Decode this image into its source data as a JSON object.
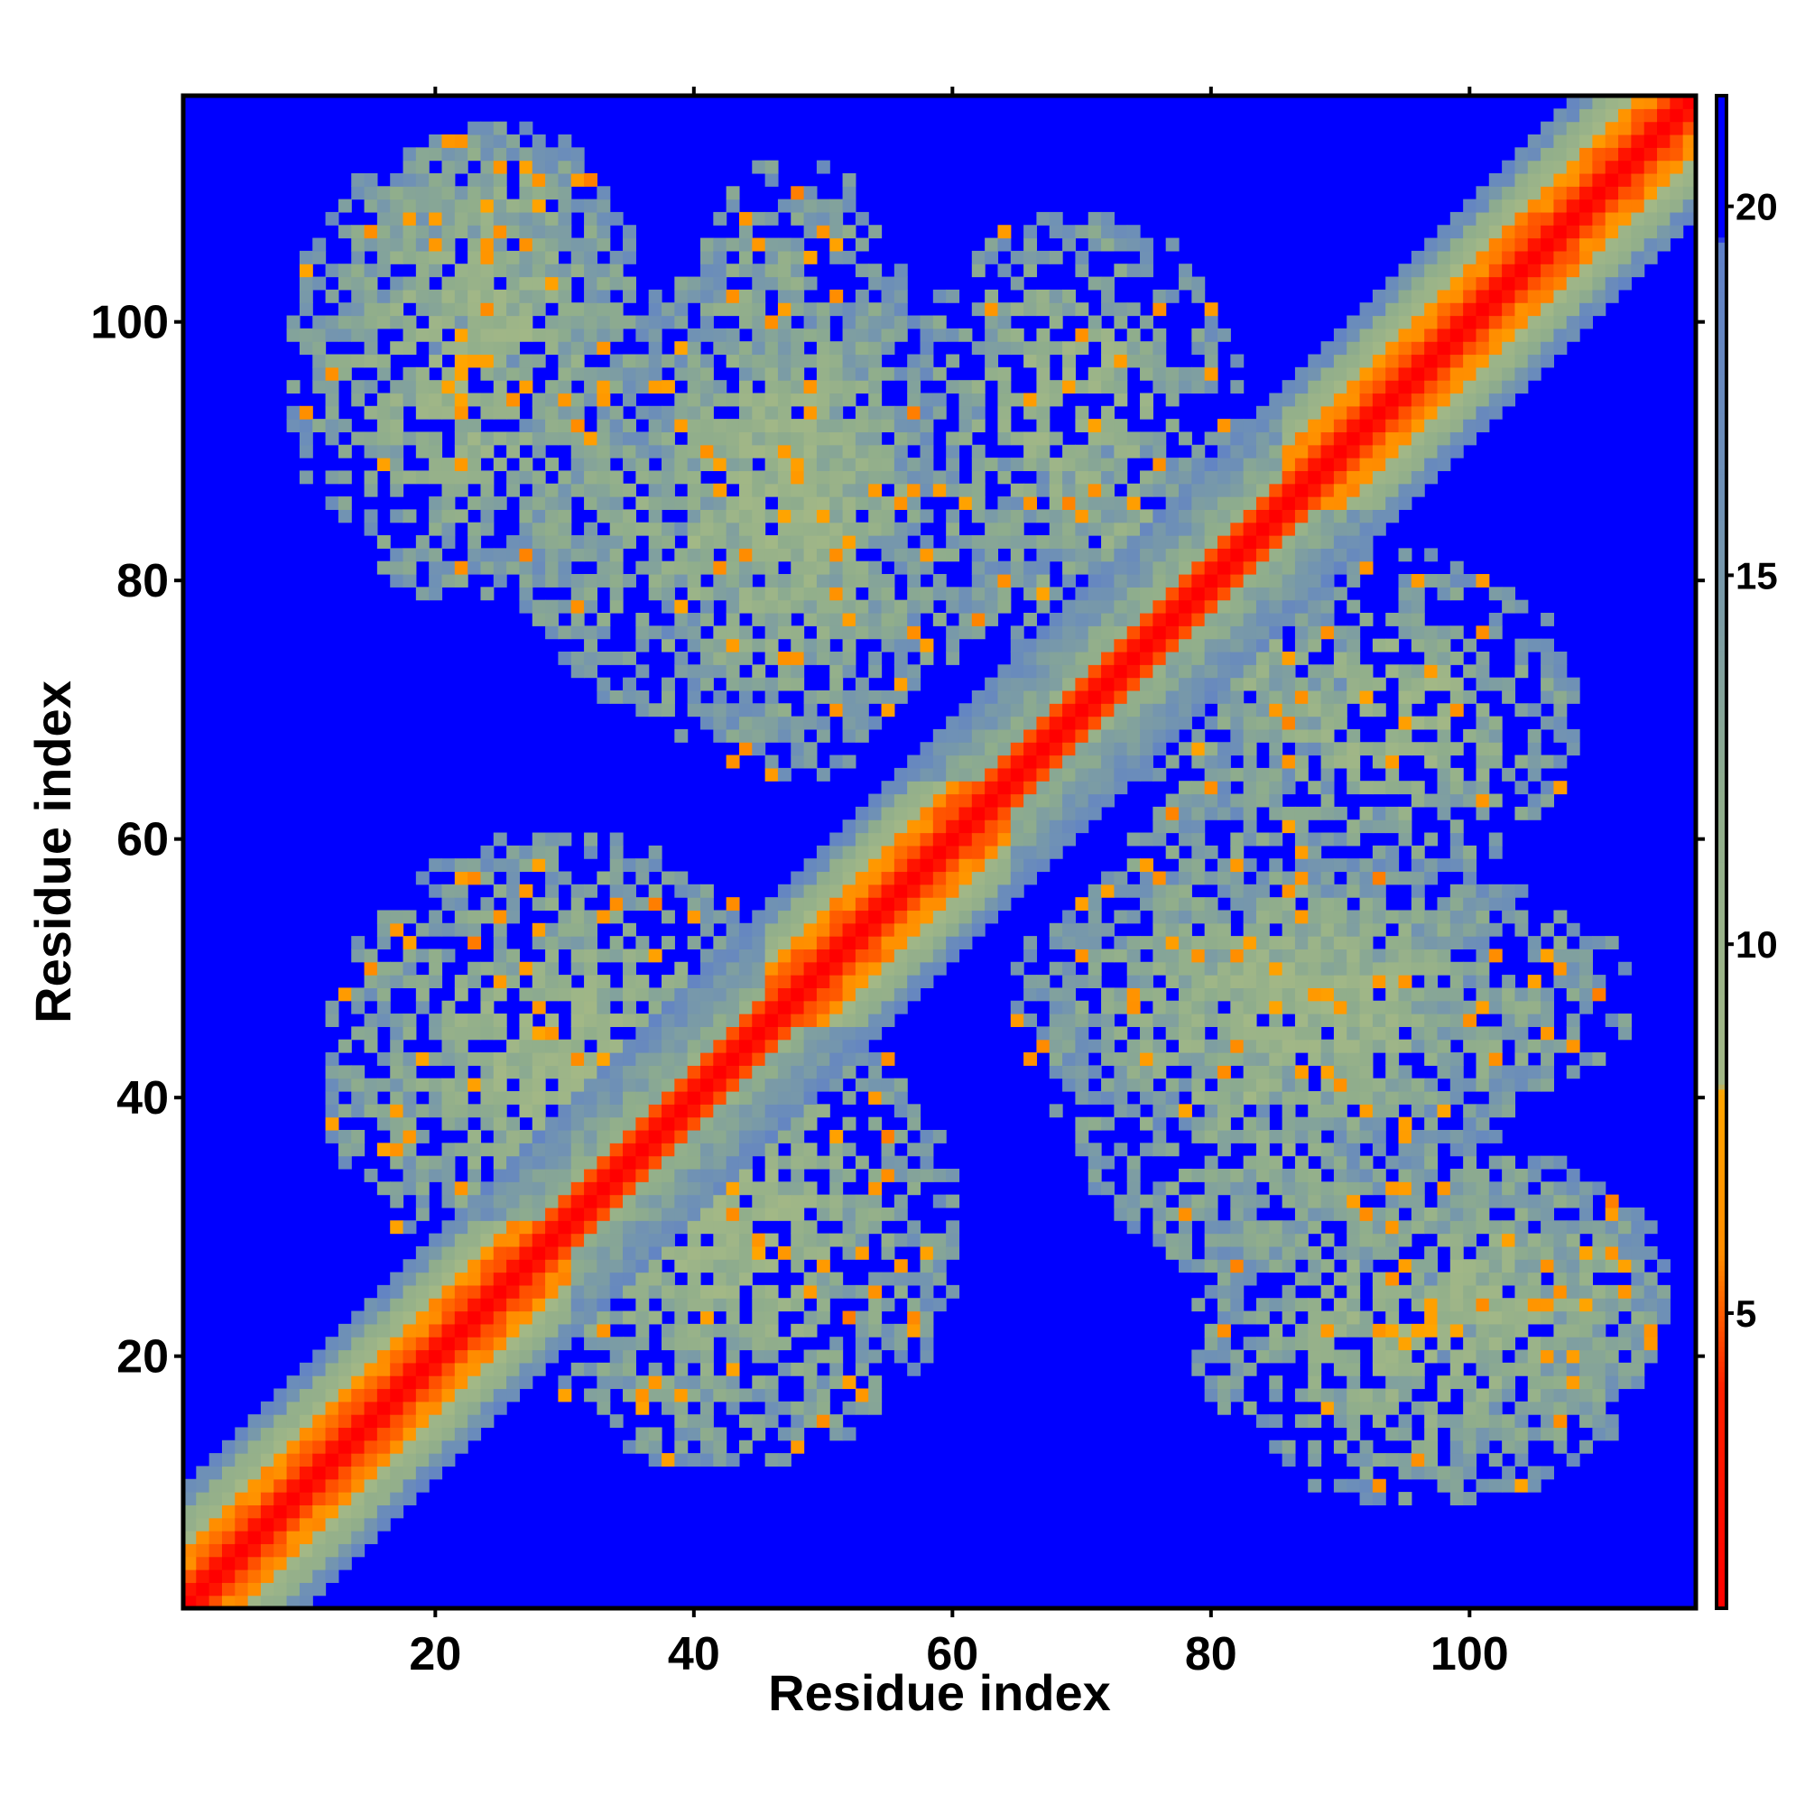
{
  "chart_data": {
    "type": "heatmap",
    "title": "",
    "xlabel": "Residue index",
    "ylabel": "Residue index",
    "x_range": [
      1,
      117
    ],
    "y_range": [
      1,
      117
    ],
    "x_ticks": [
      20,
      40,
      60,
      80,
      100
    ],
    "y_ticks": [
      20,
      40,
      60,
      80,
      100
    ],
    "grid": false,
    "legend": "none",
    "colorbar": {
      "placement": "right",
      "min": 1,
      "max": 21.5,
      "ticks": [
        5,
        10,
        15,
        20
      ],
      "stops": [
        {
          "value": 1.0,
          "color": "#ff0000"
        },
        {
          "value": 4.0,
          "color": "#ff2000"
        },
        {
          "value": 5.8,
          "color": "#ff8c00"
        },
        {
          "value": 8.0,
          "color": "#ffa500"
        },
        {
          "value": 8.1,
          "color": "#a3b886"
        },
        {
          "value": 12.0,
          "color": "#8fad8c"
        },
        {
          "value": 16.0,
          "color": "#6f91b5"
        },
        {
          "value": 19.5,
          "color": "#5f80c8"
        },
        {
          "value": 19.6,
          "color": "#0000ff"
        },
        {
          "value": 21.5,
          "color": "#0000ff"
        }
      ]
    },
    "color_background": "#0000ff",
    "structure": {
      "symmetric": true,
      "diagonal_band_width": 3,
      "helices": [
        [
          1,
          30
        ],
        [
          46,
          64
        ],
        [
          86,
          117
        ]
      ],
      "contact_regions": [
        {
          "x": [
            9,
            37
          ],
          "y": [
            79,
            114
          ],
          "contact_frequency": 0.75,
          "close_fraction": 0.06
        },
        {
          "x": [
            37,
            58
          ],
          "y": [
            65,
            112
          ],
          "contact_frequency": 0.7,
          "close_fraction": 0.05
        },
        {
          "x": [
            57,
            82
          ],
          "y": [
            80,
            108
          ],
          "contact_frequency": 0.6,
          "close_fraction": 0.04
        },
        {
          "x": [
            25,
            60
          ],
          "y": [
            12,
            48
          ],
          "contact_frequency": 0.8,
          "close_fraction": 0.07
        },
        {
          "x": [
            68,
            102
          ],
          "y": [
            26,
            64
          ],
          "contact_frequency": 0.7,
          "close_fraction": 0.05
        },
        {
          "x": [
            96,
            115
          ],
          "y": [
            14,
            35
          ],
          "contact_frequency": 0.75,
          "close_fraction": 0.03
        },
        {
          "x": [
            72,
            90
          ],
          "y": [
            62,
            88
          ],
          "contact_frequency": 0.75,
          "close_fraction": 0.08
        }
      ]
    }
  }
}
